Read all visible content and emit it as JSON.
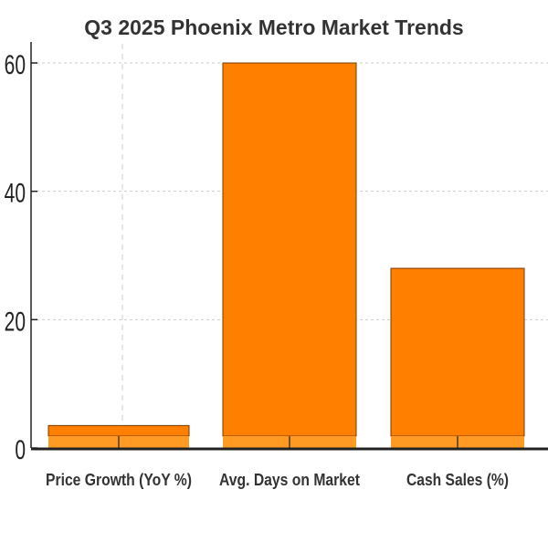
{
  "chart_data": {
    "type": "bar",
    "title": "Q3 2025 Phoenix Metro Market Trends",
    "xlabel": "",
    "ylabel": "",
    "categories": [
      "Price Growth (YoY %)",
      "Avg. Days on Market",
      "Cash Sales (%)"
    ],
    "values": [
      3.5,
      60,
      28
    ],
    "ylim": [
      0,
      63
    ],
    "yticks": [
      0,
      20,
      40,
      60
    ],
    "grid": true,
    "colors": {
      "bar": "#ff8000",
      "bar_base": "#ff9a22",
      "edge": "#7a3a00",
      "grid": "#cccccc",
      "axis": "#222222",
      "text": "#333333"
    }
  }
}
